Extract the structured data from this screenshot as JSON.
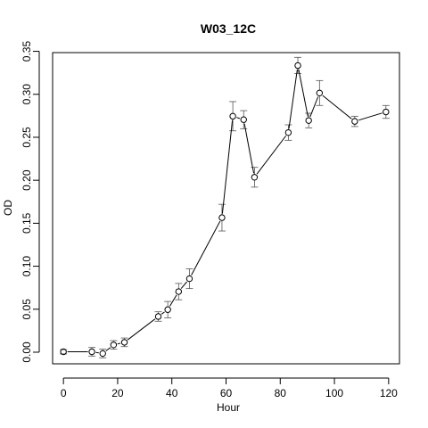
{
  "chart_data": {
    "type": "line",
    "title": "W03_12C",
    "xlabel": "Hour",
    "ylabel": "OD",
    "xlim": [
      -4,
      124
    ],
    "ylim": [
      -0.0135,
      0.3485
    ],
    "x_ticks": [
      0,
      20,
      40,
      60,
      80,
      100,
      120
    ],
    "y_ticks": [
      0.0,
      0.05,
      0.1,
      0.15,
      0.2,
      0.25,
      0.3,
      0.35
    ],
    "x_tick_labels": [
      "0",
      "20",
      "40",
      "60",
      "80",
      "100",
      "120"
    ],
    "y_tick_labels": [
      "0.00",
      "0.05",
      "0.10",
      "0.15",
      "0.20",
      "0.25",
      "0.30",
      "0.35"
    ],
    "grid": false,
    "legend": "none",
    "series": [
      {
        "x": [
          0,
          10.5,
          14.5,
          18.5,
          22.5,
          35,
          38.5,
          42.5,
          46.5,
          58.5,
          62.5,
          66.5,
          70.5,
          83,
          86.5,
          90.5,
          94.5,
          107.5,
          119
        ],
        "y": [
          0.0005,
          0.0005,
          -0.0015,
          0.0085,
          0.0115,
          0.0415,
          0.0495,
          0.0705,
          0.0855,
          0.1565,
          0.2745,
          0.2705,
          0.2035,
          0.2555,
          0.3335,
          0.2695,
          0.3015,
          0.2685,
          0.2795
        ],
        "err": [
          0.0025,
          0.005,
          0.005,
          0.005,
          0.005,
          0.0055,
          0.0095,
          0.0095,
          0.0115,
          0.0155,
          0.017,
          0.0105,
          0.0115,
          0.009,
          0.0095,
          0.0085,
          0.0145,
          0.006,
          0.0075
        ]
      }
    ]
  }
}
